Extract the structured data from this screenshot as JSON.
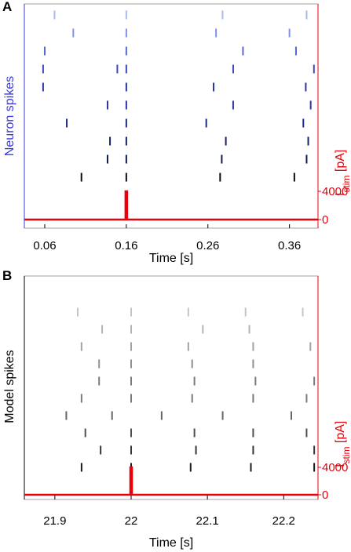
{
  "colors": {
    "stim": "#e8000b",
    "neuron_axis": "#3a3adb",
    "model_axis": "#000000",
    "neuron_shades": [
      "#a9b8ee",
      "#8191e3",
      "#5667d6",
      "#3a48c6",
      "#2a33a8",
      "#1e2a8a",
      "#16216c",
      "#121a52",
      "#0b0b1e"
    ],
    "model_shades": [
      "#c4c4c4",
      "#b4b4b4",
      "#a2a2a2",
      "#8e8e8e",
      "#7a7a7a",
      "#666666",
      "#4e4e4e",
      "#353535",
      "#1a1a1a"
    ]
  },
  "chart_data": [
    {
      "panel": "A",
      "type": "scatter",
      "ylabel_left": "Neuron spikes",
      "ylabel_right": "I",
      "ylabel_right_sub": "stim",
      "ylabel_right_unit": " [pA]",
      "xlabel": "Time [s]",
      "xlim": [
        0.035,
        0.395
      ],
      "xticks": [
        "0.06",
        "0.16",
        "0.26",
        "0.36"
      ],
      "xtick_values": [
        0.06,
        0.16,
        0.26,
        0.36
      ],
      "stim_ticks": [
        "4000",
        "0"
      ],
      "stim_tick_values": [
        4000,
        0
      ],
      "stim_pulse_time": 0.16,
      "stim_pulse_amplitude": 4000,
      "trials": [
        [
          0.072,
          0.16,
          0.278,
          0.381
        ],
        [
          0.095,
          0.16,
          0.27,
          0.36
        ],
        [
          0.06,
          0.16,
          0.303,
          0.368
        ],
        [
          0.058,
          0.149,
          0.16,
          0.291,
          0.39
        ],
        [
          0.058,
          0.16,
          0.267,
          0.38
        ],
        [
          0.137,
          0.16,
          0.291,
          0.386
        ],
        [
          0.087,
          0.16,
          0.258,
          0.377
        ],
        [
          0.14,
          0.16,
          0.282,
          0.383
        ],
        [
          0.137,
          0.16,
          0.277,
          0.381
        ],
        [
          0.105,
          0.16,
          0.275,
          0.366
        ]
      ]
    },
    {
      "panel": "B",
      "type": "scatter",
      "ylabel_left": "Model spikes",
      "ylabel_right": "I",
      "ylabel_right_sub": "stim",
      "ylabel_right_unit": " [pA]",
      "xlabel": "Time [s]",
      "xlim": [
        21.86,
        22.245
      ],
      "xticks": [
        "21.9",
        "22",
        "22.1",
        "22.2"
      ],
      "xtick_values": [
        21.9,
        22.0,
        22.1,
        22.2
      ],
      "stim_ticks": [
        "4000",
        "0"
      ],
      "stim_tick_values": [
        4000,
        0
      ],
      "stim_pulse_time": 22.0,
      "stim_pulse_amplitude": 4000,
      "trials": [
        [
          21.93,
          22.0,
          22.075,
          22.15,
          22.225
        ],
        [
          21.962,
          22.0,
          22.094,
          22.155
        ],
        [
          21.935,
          22.0,
          22.075,
          22.16,
          22.235
        ],
        [
          21.958,
          22.0,
          22.08,
          22.16
        ],
        [
          21.958,
          22.0,
          22.083,
          22.163,
          22.24
        ],
        [
          21.935,
          22.0,
          22.08,
          22.16,
          22.23
        ],
        [
          21.915,
          21.975,
          22.04,
          22.12,
          22.21
        ],
        [
          21.94,
          22.0,
          22.083,
          22.16,
          22.23
        ],
        [
          21.96,
          22.0,
          22.085,
          22.16,
          22.24
        ],
        [
          21.935,
          22.0,
          22.078,
          22.157,
          22.24
        ]
      ]
    }
  ]
}
